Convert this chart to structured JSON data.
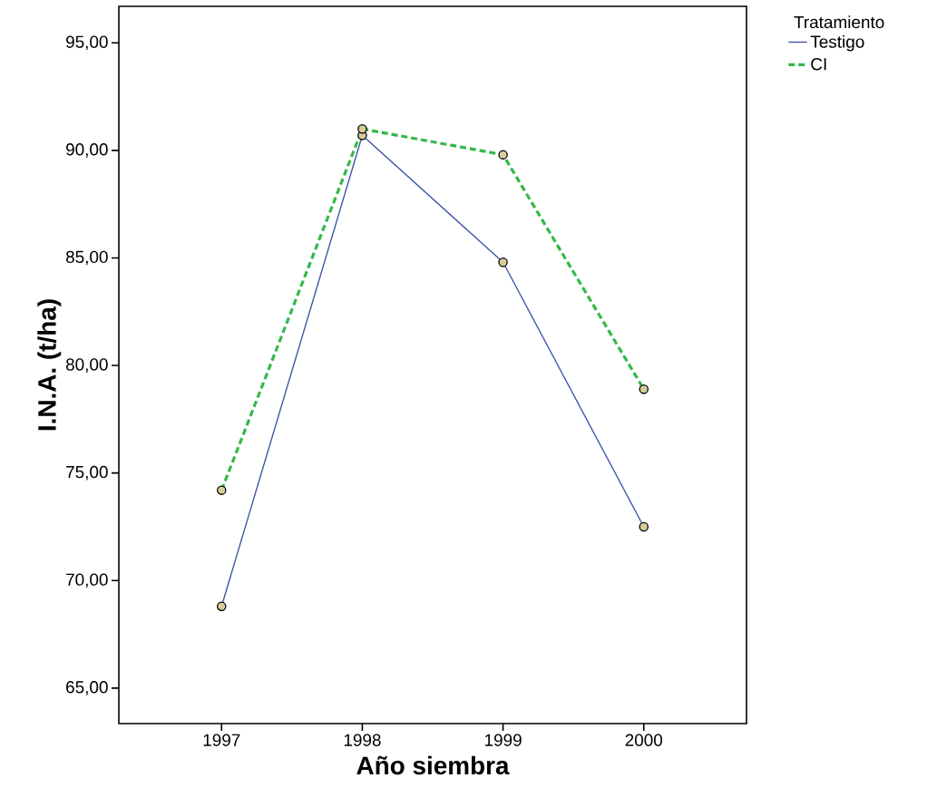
{
  "chart_data": {
    "type": "line",
    "xlabel": "Año siembra",
    "ylabel": "I.N.A. (t/ha)",
    "legend_title": "Tratamiento",
    "categories": [
      "1997",
      "1998",
      "1999",
      "2000"
    ],
    "series": [
      {
        "name": "Testigo",
        "color": "#3f56a8",
        "line_style": "solid",
        "values": [
          68.8,
          90.7,
          84.8,
          72.5
        ]
      },
      {
        "name": "CI",
        "color": "#33b84a",
        "line_style": "dashed",
        "values": [
          74.2,
          91.0,
          89.8,
          78.9
        ]
      }
    ],
    "ylim": [
      63.35,
      96.7
    ],
    "yticks": [
      {
        "value": 65,
        "label": "65,00"
      },
      {
        "value": 70,
        "label": "70,00"
      },
      {
        "value": 75,
        "label": "75,00"
      },
      {
        "value": 80,
        "label": "80,00"
      },
      {
        "value": 85,
        "label": "85,00"
      },
      {
        "value": 90,
        "label": "90,00"
      },
      {
        "value": 95,
        "label": "95,00"
      }
    ],
    "marker": "circle",
    "legend": "top right",
    "grid": false
  }
}
